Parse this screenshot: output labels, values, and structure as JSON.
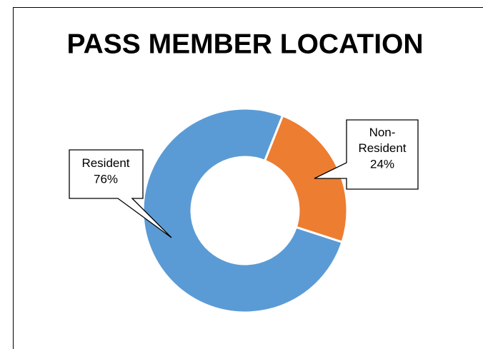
{
  "chart_data": {
    "type": "donut",
    "title": "PASS MEMBER LOCATION",
    "categories": [
      "Resident",
      "Non-Resident"
    ],
    "values": [
      76,
      24
    ],
    "value_labels": [
      "76%",
      "24%"
    ],
    "colors": [
      "#5b9bd5",
      "#ed7d31"
    ]
  }
}
